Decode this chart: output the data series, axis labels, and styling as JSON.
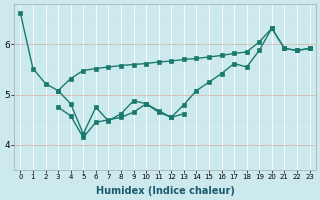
{
  "xlabel": "Humidex (Indice chaleur)",
  "bg_color": "#cce9ed",
  "line_color": "#1a7a6e",
  "xlim": [
    -0.5,
    23.5
  ],
  "ylim": [
    3.5,
    6.8
  ],
  "yticks": [
    4,
    5,
    6
  ],
  "xticks": [
    0,
    1,
    2,
    3,
    4,
    5,
    6,
    7,
    8,
    9,
    10,
    11,
    12,
    13,
    14,
    15,
    16,
    17,
    18,
    19,
    20,
    21,
    22,
    23
  ],
  "line1_x": [
    0,
    1,
    2,
    3,
    4,
    5,
    6,
    7,
    8,
    9,
    10,
    11,
    12,
    13,
    14,
    15,
    16,
    17,
    18,
    19,
    20,
    21,
    22,
    23
  ],
  "line1_y": [
    6.62,
    5.52,
    5.22,
    5.08,
    5.32,
    5.48,
    5.52,
    5.55,
    5.58,
    5.6,
    5.62,
    5.65,
    5.67,
    5.7,
    5.72,
    5.75,
    5.78,
    5.82,
    5.85,
    6.05,
    6.32,
    5.92,
    5.88,
    5.92
  ],
  "line2_x": [
    3,
    4,
    5,
    6,
    7,
    8,
    9,
    10,
    11,
    12,
    13,
    14,
    15,
    16,
    17,
    18,
    19,
    20,
    21,
    22,
    23
  ],
  "line2_y": [
    5.08,
    4.82,
    4.22,
    4.75,
    4.48,
    4.62,
    4.88,
    4.82,
    4.68,
    4.55,
    4.8,
    5.08,
    5.25,
    5.42,
    5.62,
    5.55,
    5.88,
    6.32,
    5.92,
    5.88,
    5.92
  ],
  "line3_x": [
    3,
    4,
    5,
    6,
    7,
    8,
    9,
    10,
    11,
    12,
    13
  ],
  "line3_y": [
    4.75,
    4.58,
    4.15,
    4.45,
    4.5,
    4.55,
    4.65,
    4.82,
    4.65,
    4.55,
    4.62
  ],
  "marker_size": 2.5,
  "line_width": 1.0,
  "white_grid_color": "#e8f5f7",
  "red_grid_color": "#e8c8c8",
  "tick_fontsize_x": 5,
  "tick_fontsize_y": 6.5,
  "xlabel_fontsize": 7
}
